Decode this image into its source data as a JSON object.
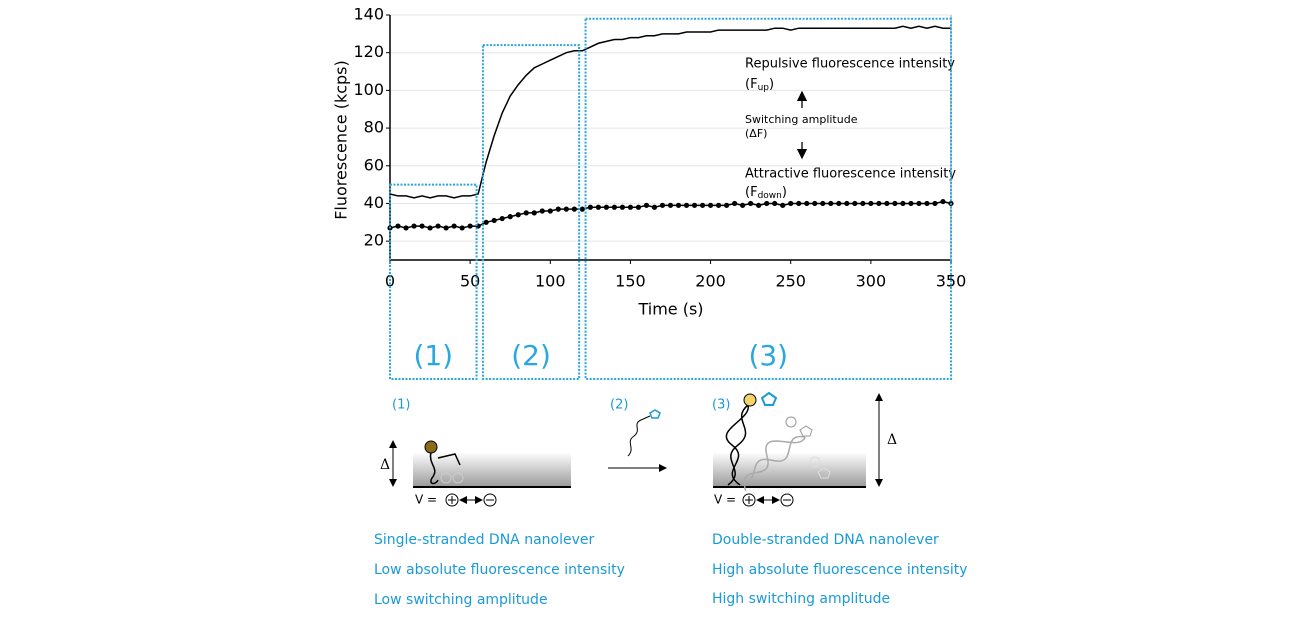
{
  "chart_data": {
    "type": "line",
    "x_label": "Time (s)",
    "y_label": "Fluorescence (kcps)",
    "x": [
      0,
      5,
      10,
      15,
      20,
      25,
      30,
      35,
      40,
      45,
      50,
      55,
      60,
      65,
      70,
      75,
      80,
      85,
      90,
      95,
      100,
      105,
      110,
      115,
      120,
      125,
      130,
      135,
      140,
      145,
      150,
      155,
      160,
      165,
      170,
      175,
      180,
      185,
      190,
      195,
      200,
      205,
      210,
      215,
      220,
      225,
      230,
      235,
      240,
      245,
      250,
      255,
      260,
      265,
      270,
      275,
      280,
      285,
      290,
      295,
      300,
      305,
      310,
      315,
      320,
      325,
      330,
      335,
      340,
      345,
      350
    ],
    "series": [
      {
        "name": "Repulsive fluorescence intensity",
        "color": "#000000",
        "marker": false,
        "values": [
          45,
          44,
          44,
          43,
          44,
          43,
          44,
          44,
          43,
          44,
          44,
          45,
          62,
          76,
          88,
          97,
          103,
          108,
          112,
          114,
          116,
          118,
          120,
          121,
          121,
          123,
          125,
          126,
          127,
          127,
          128,
          128,
          129,
          129,
          130,
          130,
          130,
          131,
          131,
          131,
          131,
          132,
          132,
          132,
          132,
          132,
          132,
          132,
          133,
          133,
          132,
          133,
          133,
          133,
          133,
          133,
          133,
          133,
          133,
          133,
          133,
          133,
          133,
          133,
          134,
          133,
          134,
          133,
          134,
          133,
          133
        ]
      },
      {
        "name": "Attractive fluorescence intensity",
        "color": "#000000",
        "marker": true,
        "values": [
          27,
          28,
          27,
          28,
          28,
          27,
          28,
          27,
          28,
          27,
          28,
          28,
          30,
          31,
          32,
          33,
          34,
          35,
          35,
          36,
          36,
          37,
          37,
          37,
          37,
          38,
          38,
          38,
          38,
          38,
          38,
          38,
          39,
          38,
          39,
          39,
          39,
          39,
          39,
          39,
          39,
          39,
          39,
          40,
          39,
          40,
          39,
          40,
          40,
          39,
          40,
          40,
          40,
          40,
          40,
          40,
          40,
          40,
          40,
          40,
          40,
          40,
          40,
          40,
          40,
          40,
          40,
          40,
          40,
          41,
          40
        ]
      }
    ],
    "xlim": [
      0,
      350
    ],
    "xticks": [
      0,
      50,
      100,
      150,
      200,
      250,
      300,
      350
    ],
    "ylim": [
      10,
      140
    ],
    "yticks": [
      20,
      40,
      60,
      80,
      100,
      120,
      140
    ],
    "grid": true,
    "annotations": {
      "repulsive": {
        "label": "Repulsive fluorescence intensity",
        "symbol": "(F",
        "subscript": "up",
        "suffix": ")"
      },
      "switching": {
        "label": "Switching amplitude",
        "symbol": "(ΔF)"
      },
      "attractive": {
        "label": "Attractive fluorescence intensity",
        "symbol": "(F",
        "subscript": "down",
        "suffix": ")"
      }
    },
    "regions": [
      {
        "label": "(1)",
        "x": [
          0,
          54
        ],
        "top": 50
      },
      {
        "label": "(2)",
        "x": [
          58,
          118
        ],
        "top": 124
      },
      {
        "label": "(3)",
        "x": [
          122,
          350
        ],
        "top": 138
      }
    ]
  },
  "diagram": {
    "step1": {
      "label": "(1)",
      "delta": "Δ",
      "voltage": "V ="
    },
    "step2": {
      "label": "(2)"
    },
    "step3": {
      "label": "(3)",
      "delta": "Δ",
      "voltage": "V ="
    },
    "left_notes": [
      "Single-stranded DNA nanolever",
      "Low absolute fluorescence intensity",
      "Low switching amplitude"
    ],
    "right_notes": [
      "Double-stranded DNA nanolever",
      "High absolute fluorescence intensity",
      "High switching amplitude"
    ]
  }
}
